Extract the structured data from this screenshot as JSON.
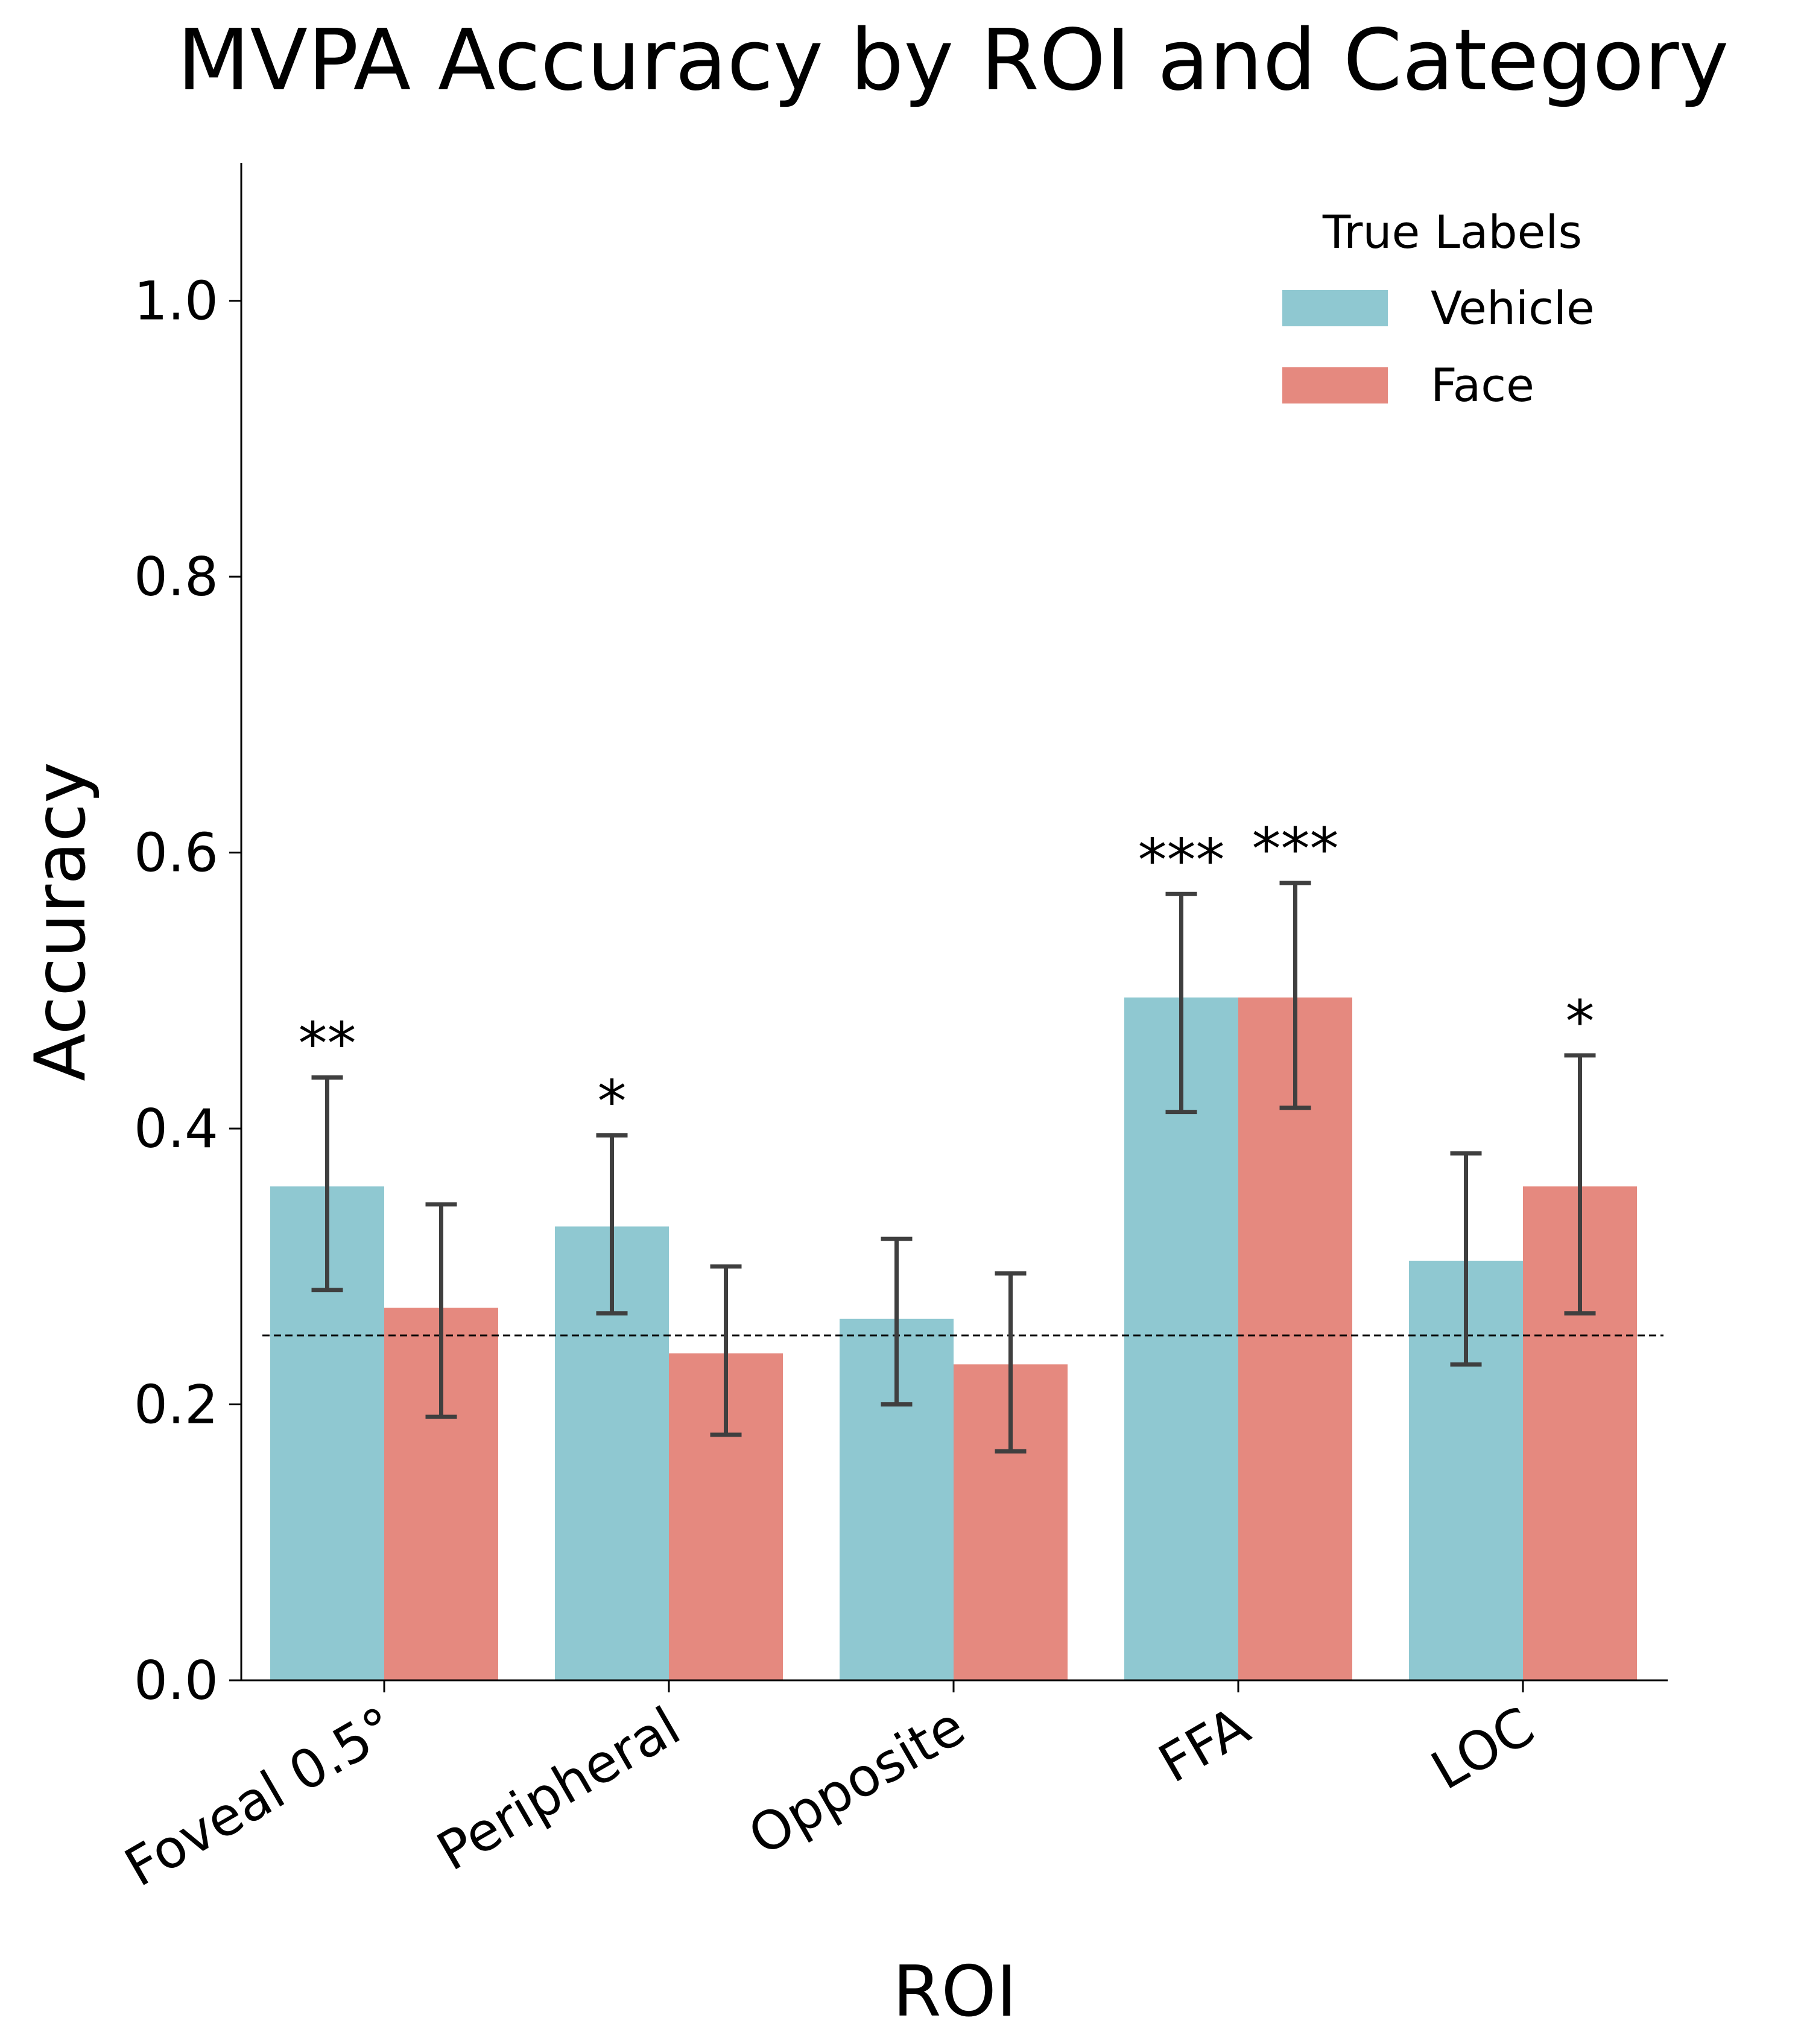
{
  "chart_data": {
    "type": "bar",
    "title": "MVPA Accuracy by ROI and Category",
    "xlabel": "ROI",
    "ylabel": "Accuracy",
    "ylim": [
      0,
      1.1
    ],
    "yticks": [
      "0.0",
      "0.2",
      "0.4",
      "0.6",
      "0.8",
      "1.0"
    ],
    "categories": [
      "Foveal 0.5°",
      "Peripheral",
      "Opposite",
      "FFA",
      "LOC"
    ],
    "chance_level": 0.25,
    "legend": {
      "title": "True Labels",
      "placement": "upper-right"
    },
    "series": [
      {
        "name": "Vehicle",
        "color": "#8fc8d1",
        "values": [
          0.358,
          0.329,
          0.262,
          0.495,
          0.304
        ],
        "error_low": [
          0.283,
          0.266,
          0.2,
          0.412,
          0.229
        ],
        "error_high": [
          0.437,
          0.395,
          0.32,
          0.57,
          0.382
        ],
        "significance": [
          "**",
          "*",
          "",
          "***",
          ""
        ]
      },
      {
        "name": "Face",
        "color": "#e5897f",
        "values": [
          0.27,
          0.237,
          0.229,
          0.495,
          0.358
        ],
        "error_low": [
          0.191,
          0.178,
          0.166,
          0.415,
          0.266
        ],
        "error_high": [
          0.345,
          0.3,
          0.295,
          0.578,
          0.453
        ],
        "significance": [
          "",
          "",
          "",
          "***",
          "*"
        ]
      }
    ],
    "error_color": "#3f3f3f",
    "grid": false
  }
}
